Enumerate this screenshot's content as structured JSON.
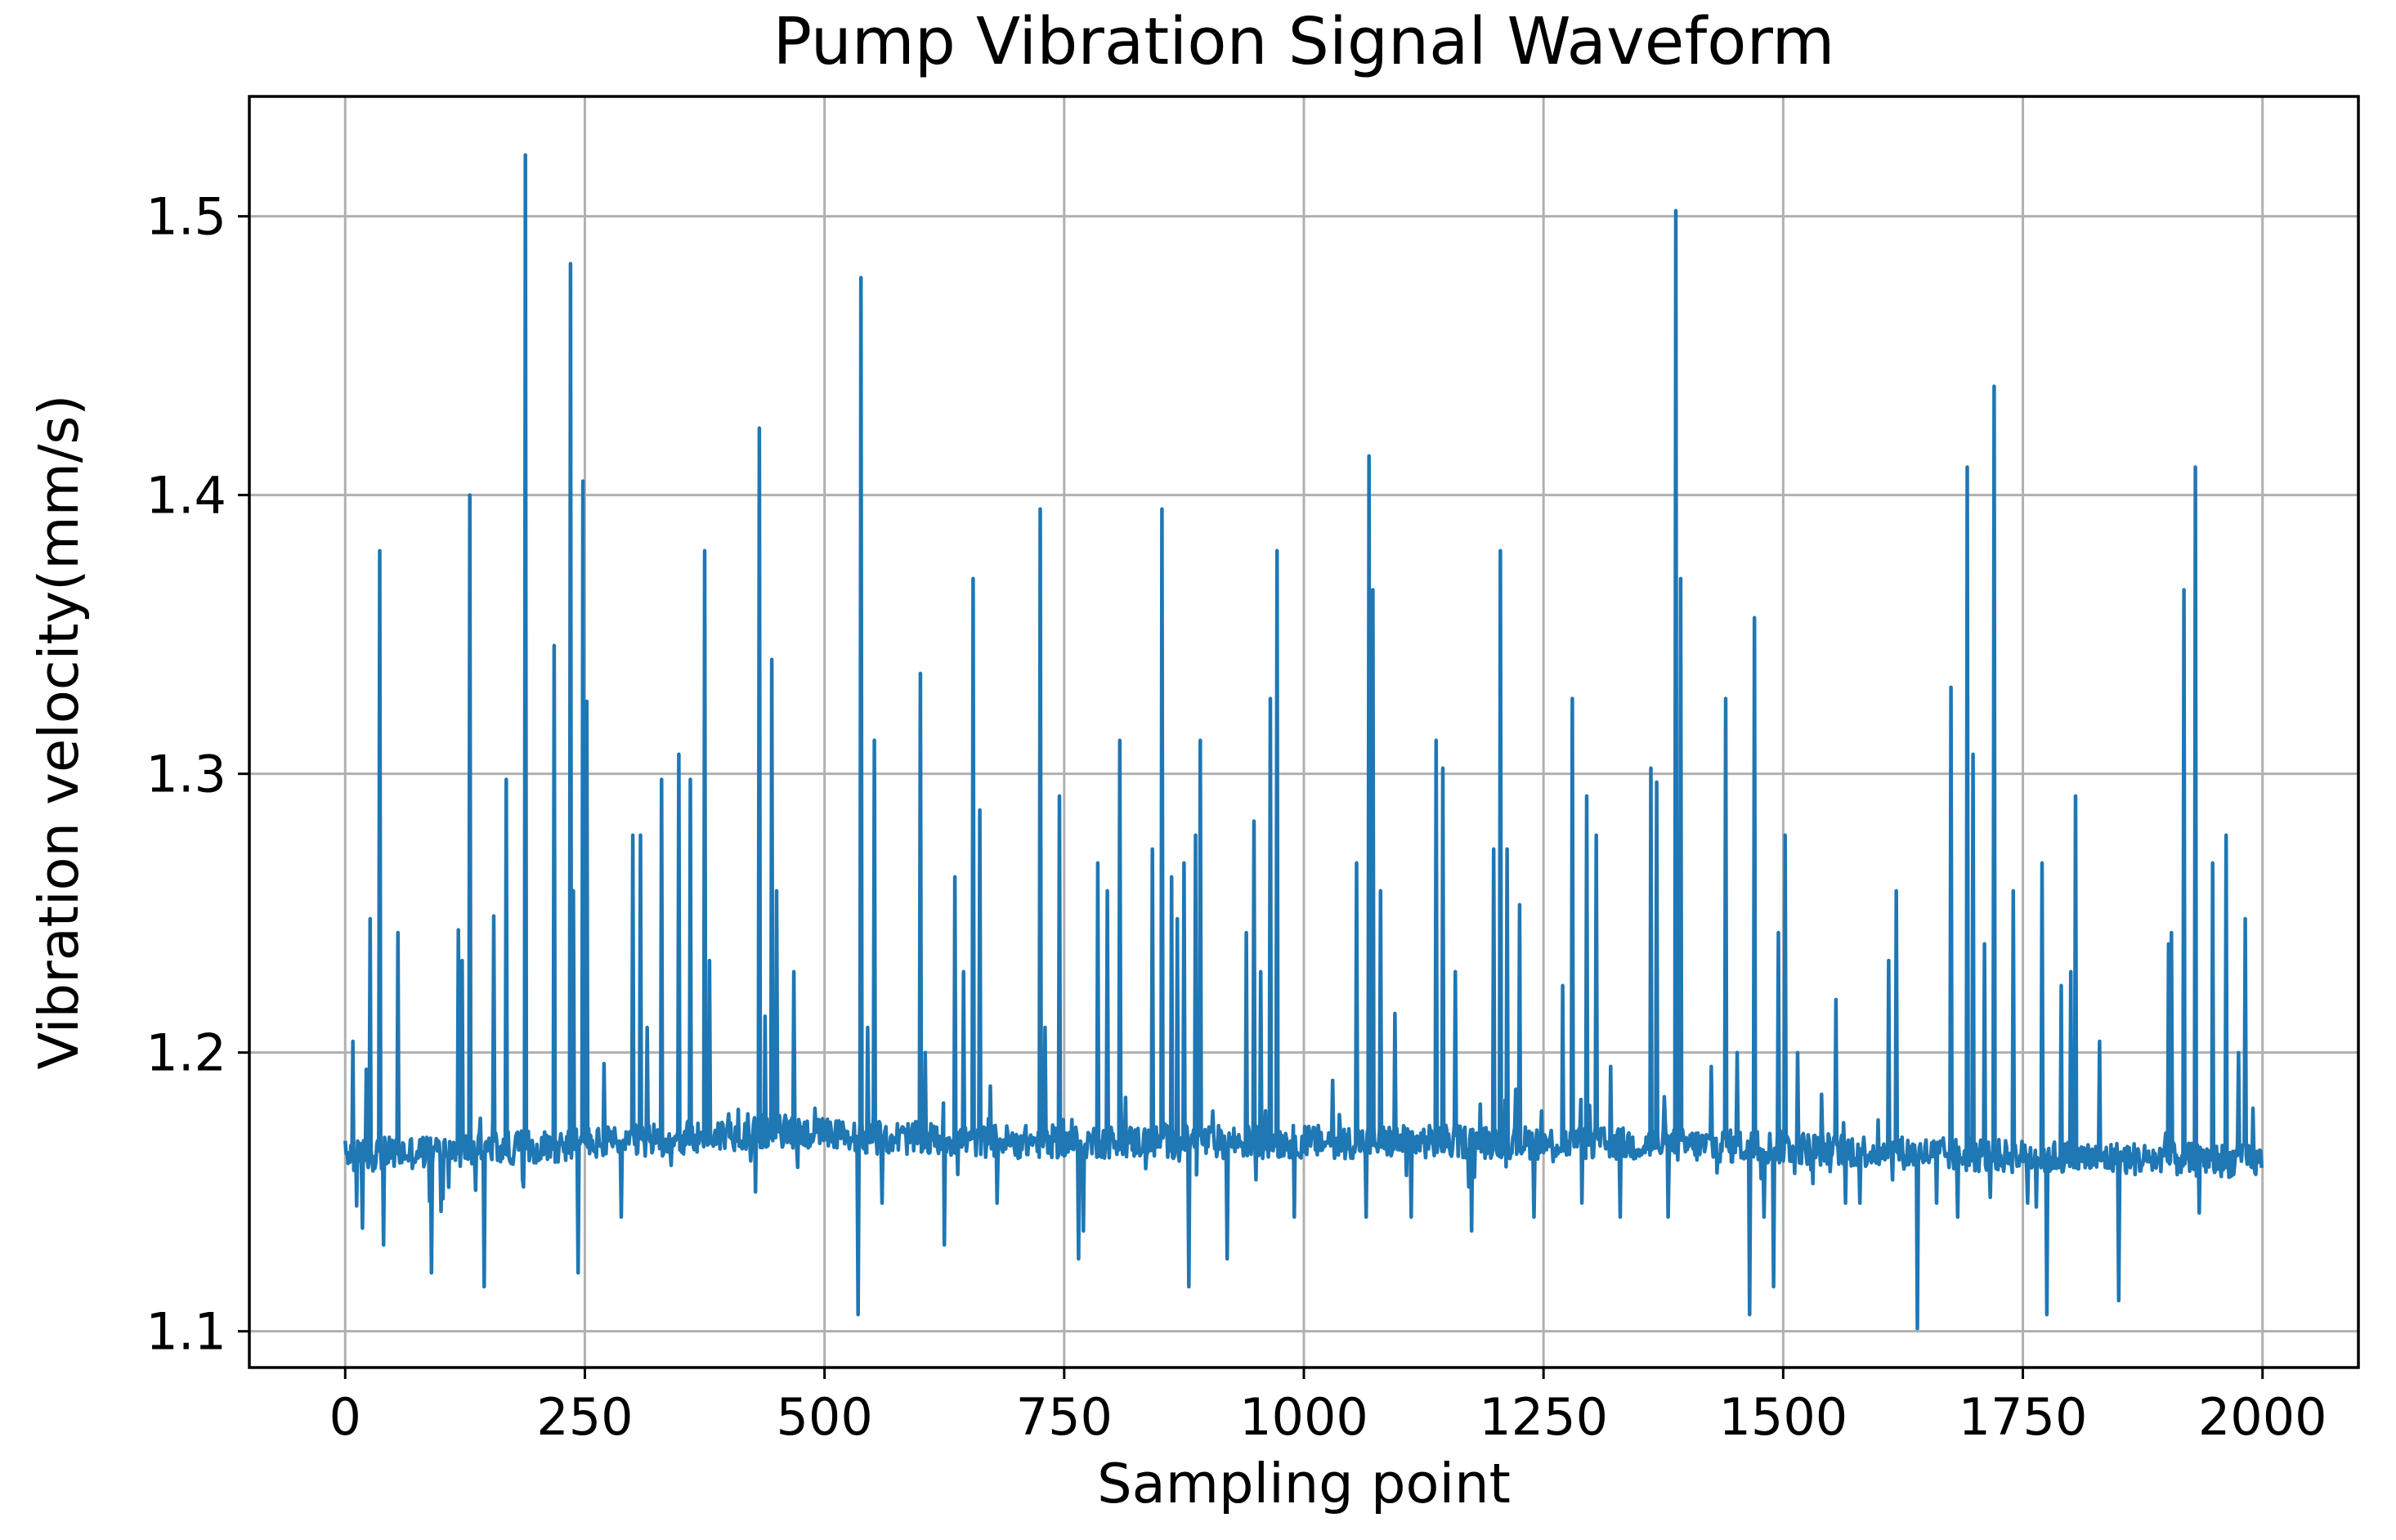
{
  "chart_data": {
    "type": "line",
    "title": "Pump Vibration Signal Waveform",
    "xlabel": "Sampling point",
    "ylabel": "Vibration velocity(mm/s)",
    "xlim": [
      -100,
      2100
    ],
    "ylim": [
      1.087,
      1.543
    ],
    "grid": true,
    "legend": "none",
    "x_ticks": [
      0,
      250,
      500,
      750,
      1000,
      1250,
      1500,
      1750,
      2000
    ],
    "x_tick_labels": [
      "0",
      "250",
      "500",
      "750",
      "1000",
      "1250",
      "1500",
      "1750",
      "2000"
    ],
    "y_ticks": [
      1.1,
      1.2,
      1.3,
      1.4,
      1.5
    ],
    "y_tick_labels": [
      "1.1",
      "1.2",
      "1.3",
      "1.4",
      "1.5"
    ],
    "series": [
      {
        "name": "Vibration velocity",
        "color": "#1f77b4",
        "n_points": 2000,
        "baseline": [
          [
            0,
            1.163
          ],
          [
            300,
            1.168
          ],
          [
            450,
            1.172
          ],
          [
            520,
            1.17
          ],
          [
            700,
            1.168
          ],
          [
            1200,
            1.168
          ],
          [
            1500,
            1.166
          ],
          [
            1700,
            1.163
          ],
          [
            2000,
            1.161
          ]
        ],
        "spikes": [
          [
            8,
            1.204
          ],
          [
            12,
            1.145
          ],
          [
            18,
            1.137
          ],
          [
            22,
            1.194
          ],
          [
            26,
            1.248
          ],
          [
            36,
            1.38
          ],
          [
            40,
            1.131
          ],
          [
            55,
            1.243
          ],
          [
            90,
            1.121
          ],
          [
            100,
            1.143
          ],
          [
            118,
            1.244
          ],
          [
            122,
            1.233
          ],
          [
            130,
            1.4
          ],
          [
            145,
            1.116
          ],
          [
            155,
            1.249
          ],
          [
            168,
            1.298
          ],
          [
            188,
            1.522
          ],
          [
            218,
            1.346
          ],
          [
            235,
            1.483
          ],
          [
            238,
            1.258
          ],
          [
            243,
            1.121
          ],
          [
            248,
            1.405
          ],
          [
            252,
            1.326
          ],
          [
            270,
            1.196
          ],
          [
            288,
            1.141
          ],
          [
            300,
            1.278
          ],
          [
            308,
            1.278
          ],
          [
            315,
            1.209
          ],
          [
            330,
            1.298
          ],
          [
            348,
            1.307
          ],
          [
            360,
            1.298
          ],
          [
            375,
            1.38
          ],
          [
            380,
            1.233
          ],
          [
            400,
            1.178
          ],
          [
            420,
            1.178
          ],
          [
            428,
            1.15
          ],
          [
            432,
            1.424
          ],
          [
            438,
            1.213
          ],
          [
            445,
            1.341
          ],
          [
            450,
            1.258
          ],
          [
            468,
            1.229
          ],
          [
            490,
            1.18
          ],
          [
            510,
            1.166
          ],
          [
            535,
            1.106
          ],
          [
            538,
            1.478
          ],
          [
            545,
            1.209
          ],
          [
            552,
            1.312
          ],
          [
            560,
            1.146
          ],
          [
            600,
            1.336
          ],
          [
            605,
            1.2
          ],
          [
            625,
            1.131
          ],
          [
            636,
            1.263
          ],
          [
            645,
            1.229
          ],
          [
            655,
            1.37
          ],
          [
            662,
            1.287
          ],
          [
            680,
            1.146
          ],
          [
            725,
            1.395
          ],
          [
            730,
            1.209
          ],
          [
            745,
            1.292
          ],
          [
            765,
            1.126
          ],
          [
            770,
            1.136
          ],
          [
            785,
            1.268
          ],
          [
            795,
            1.258
          ],
          [
            808,
            1.312
          ],
          [
            842,
            1.273
          ],
          [
            852,
            1.395
          ],
          [
            862,
            1.263
          ],
          [
            868,
            1.248
          ],
          [
            875,
            1.268
          ],
          [
            880,
            1.116
          ],
          [
            887,
            1.278
          ],
          [
            892,
            1.312
          ],
          [
            920,
            1.126
          ],
          [
            940,
            1.243
          ],
          [
            948,
            1.283
          ],
          [
            955,
            1.229
          ],
          [
            965,
            1.327
          ],
          [
            972,
            1.38
          ],
          [
            990,
            1.141
          ],
          [
            1030,
            1.19
          ],
          [
            1055,
            1.268
          ],
          [
            1065,
            1.141
          ],
          [
            1068,
            1.414
          ],
          [
            1072,
            1.366
          ],
          [
            1080,
            1.258
          ],
          [
            1095,
            1.214
          ],
          [
            1112,
            1.141
          ],
          [
            1138,
            1.312
          ],
          [
            1145,
            1.302
          ],
          [
            1158,
            1.229
          ],
          [
            1175,
            1.136
          ],
          [
            1198,
            1.273
          ],
          [
            1205,
            1.38
          ],
          [
            1212,
            1.273
          ],
          [
            1225,
            1.253
          ],
          [
            1240,
            1.141
          ],
          [
            1270,
            1.224
          ],
          [
            1280,
            1.327
          ],
          [
            1290,
            1.146
          ],
          [
            1295,
            1.292
          ],
          [
            1305,
            1.278
          ],
          [
            1320,
            1.195
          ],
          [
            1330,
            1.141
          ],
          [
            1362,
            1.302
          ],
          [
            1368,
            1.297
          ],
          [
            1380,
            1.141
          ],
          [
            1388,
            1.502
          ],
          [
            1393,
            1.37
          ],
          [
            1425,
            1.195
          ],
          [
            1440,
            1.327
          ],
          [
            1452,
            1.2
          ],
          [
            1465,
            1.106
          ],
          [
            1470,
            1.356
          ],
          [
            1480,
            1.141
          ],
          [
            1490,
            1.116
          ],
          [
            1495,
            1.243
          ],
          [
            1502,
            1.278
          ],
          [
            1515,
            1.2
          ],
          [
            1540,
            1.185
          ],
          [
            1555,
            1.219
          ],
          [
            1565,
            1.146
          ],
          [
            1580,
            1.146
          ],
          [
            1610,
            1.233
          ],
          [
            1618,
            1.258
          ],
          [
            1640,
            1.101
          ],
          [
            1660,
            1.146
          ],
          [
            1675,
            1.331
          ],
          [
            1682,
            1.141
          ],
          [
            1692,
            1.41
          ],
          [
            1698,
            1.307
          ],
          [
            1710,
            1.239
          ],
          [
            1720,
            1.439
          ],
          [
            1740,
            1.258
          ],
          [
            1755,
            1.146
          ],
          [
            1770,
            1.268
          ],
          [
            1775,
            1.106
          ],
          [
            1790,
            1.224
          ],
          [
            1800,
            1.229
          ],
          [
            1805,
            1.292
          ],
          [
            1830,
            1.204
          ],
          [
            1850,
            1.111
          ],
          [
            1902,
            1.239
          ],
          [
            1905,
            1.243
          ],
          [
            1918,
            1.366
          ],
          [
            1930,
            1.41
          ],
          [
            1938,
            1.165
          ],
          [
            1948,
            1.268
          ],
          [
            1962,
            1.278
          ],
          [
            1975,
            1.2
          ],
          [
            1982,
            1.248
          ],
          [
            1990,
            1.18
          ]
        ]
      }
    ]
  }
}
